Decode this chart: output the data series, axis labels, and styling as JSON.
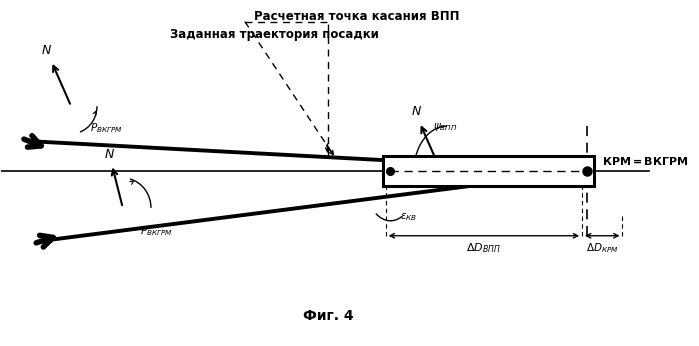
{
  "bg_color": "#ffffff",
  "fig_width": 6.99,
  "fig_height": 3.46,
  "dpi": 100,
  "caption": "Фиг. 4",
  "label_raschet": "Расчетная точка касания ВПП",
  "label_zadannaya": "Заданная траектория посадки",
  "label_krm": "КРМ=ВКГРМ"
}
